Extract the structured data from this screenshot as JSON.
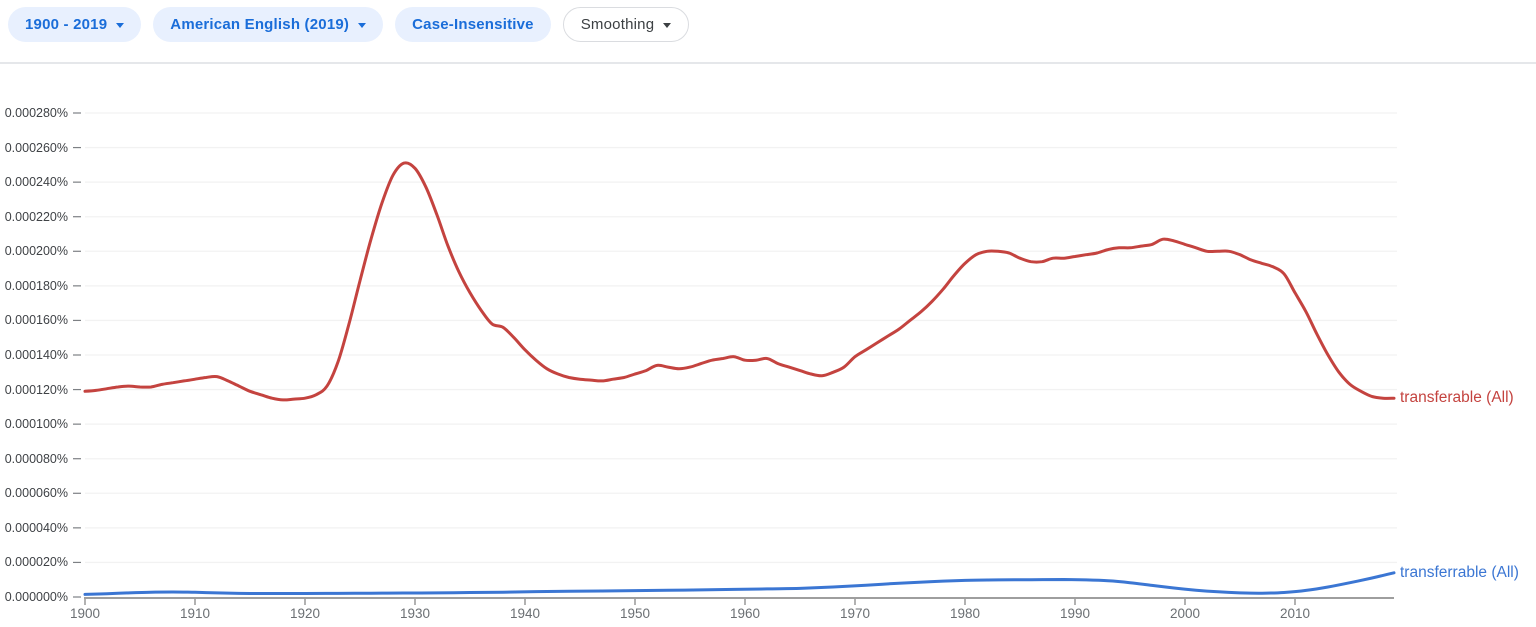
{
  "toolbar": {
    "year_range_chip": {
      "label": "1900 - 2019"
    },
    "corpus_chip": {
      "label": "American English (2019)"
    },
    "case_chip": {
      "label": "Case-Insensitive"
    },
    "smoothing_chip": {
      "label": "Smoothing"
    }
  },
  "colors": {
    "chip_bg": "#e8f0fe",
    "chip_text": "#1a6dd9",
    "red_series": "#c4433f",
    "blue_series": "#3b76d3",
    "gridline": "#f2f2f2",
    "axis": "#9e9e9e"
  },
  "chart_data": {
    "type": "line",
    "title": "",
    "xlabel": "",
    "ylabel": "",
    "xlim": [
      1900,
      2019
    ],
    "ylim": [
      0,
      2.8e-06
    ],
    "ylim_percent": [
      0,
      0.00028
    ],
    "y_tick_step_percent": 2e-05,
    "grid": "horizontal",
    "legend_position": "right-of-line-end",
    "y_tick_labels": [
      "0.000000%",
      "0.000020%",
      "0.000040%",
      "0.000060%",
      "0.000080%",
      "0.000100%",
      "0.000120%",
      "0.000140%",
      "0.000160%",
      "0.000180%",
      "0.000200%",
      "0.000220%",
      "0.000240%",
      "0.000260%",
      "0.000280%"
    ],
    "x_tick_labels": [
      "1900",
      "1910",
      "1920",
      "1930",
      "1940",
      "1950",
      "1960",
      "1970",
      "1980",
      "1990",
      "2000",
      "2010"
    ],
    "x_tick_years": [
      1900,
      1910,
      1920,
      1930,
      1940,
      1950,
      1960,
      1970,
      1980,
      1990,
      2000,
      2010
    ],
    "series": [
      {
        "name": "transferable (All)",
        "color": "#c4433f",
        "points": [
          [
            1900,
            0.000119
          ],
          [
            1901,
            0.0001195
          ],
          [
            1902,
            0.0001205
          ],
          [
            1903,
            0.0001215
          ],
          [
            1904,
            0.000122
          ],
          [
            1905,
            0.0001215
          ],
          [
            1906,
            0.0001215
          ],
          [
            1907,
            0.000123
          ],
          [
            1908,
            0.000124
          ],
          [
            1909,
            0.000125
          ],
          [
            1910,
            0.000126
          ],
          [
            1911,
            0.000127
          ],
          [
            1912,
            0.0001275
          ],
          [
            1913,
            0.000125
          ],
          [
            1914,
            0.000122
          ],
          [
            1915,
            0.000119
          ],
          [
            1916,
            0.000117
          ],
          [
            1917,
            0.000115
          ],
          [
            1918,
            0.000114
          ],
          [
            1919,
            0.0001145
          ],
          [
            1920,
            0.000115
          ],
          [
            1921,
            0.000117
          ],
          [
            1922,
            0.000122
          ],
          [
            1923,
            0.000136
          ],
          [
            1924,
            0.000158
          ],
          [
            1925,
            0.000183
          ],
          [
            1926,
            0.000207
          ],
          [
            1927,
            0.000228
          ],
          [
            1928,
            0.000244
          ],
          [
            1929,
            0.000251
          ],
          [
            1930,
            0.000248
          ],
          [
            1931,
            0.000237
          ],
          [
            1932,
            0.000221
          ],
          [
            1933,
            0.000203
          ],
          [
            1934,
            0.000188
          ],
          [
            1935,
            0.000176
          ],
          [
            1936,
            0.000166
          ],
          [
            1937,
            0.000158
          ],
          [
            1938,
            0.000156
          ],
          [
            1939,
            0.00015
          ],
          [
            1940,
            0.000143
          ],
          [
            1941,
            0.000137
          ],
          [
            1942,
            0.000132
          ],
          [
            1943,
            0.000129
          ],
          [
            1944,
            0.000127
          ],
          [
            1945,
            0.000126
          ],
          [
            1946,
            0.0001255
          ],
          [
            1947,
            0.000125
          ],
          [
            1948,
            0.000126
          ],
          [
            1949,
            0.000127
          ],
          [
            1950,
            0.000129
          ],
          [
            1951,
            0.000131
          ],
          [
            1952,
            0.000134
          ],
          [
            1953,
            0.000133
          ],
          [
            1954,
            0.000132
          ],
          [
            1955,
            0.000133
          ],
          [
            1956,
            0.000135
          ],
          [
            1957,
            0.000137
          ],
          [
            1958,
            0.000138
          ],
          [
            1959,
            0.000139
          ],
          [
            1960,
            0.000137
          ],
          [
            1961,
            0.000137
          ],
          [
            1962,
            0.000138
          ],
          [
            1963,
            0.000135
          ],
          [
            1964,
            0.000133
          ],
          [
            1965,
            0.000131
          ],
          [
            1966,
            0.000129
          ],
          [
            1967,
            0.000128
          ],
          [
            1968,
            0.00013
          ],
          [
            1969,
            0.000133
          ],
          [
            1970,
            0.000139
          ],
          [
            1971,
            0.000143
          ],
          [
            1972,
            0.000147
          ],
          [
            1973,
            0.000151
          ],
          [
            1974,
            0.000155
          ],
          [
            1975,
            0.00016
          ],
          [
            1976,
            0.000165
          ],
          [
            1977,
            0.000171
          ],
          [
            1978,
            0.000178
          ],
          [
            1979,
            0.000186
          ],
          [
            1980,
            0.000193
          ],
          [
            1981,
            0.000198
          ],
          [
            1982,
            0.0002
          ],
          [
            1983,
            0.0002
          ],
          [
            1984,
            0.000199
          ],
          [
            1985,
            0.000196
          ],
          [
            1986,
            0.000194
          ],
          [
            1987,
            0.000194
          ],
          [
            1988,
            0.000196
          ],
          [
            1989,
            0.000196
          ],
          [
            1990,
            0.000197
          ],
          [
            1991,
            0.000198
          ],
          [
            1992,
            0.000199
          ],
          [
            1993,
            0.000201
          ],
          [
            1994,
            0.000202
          ],
          [
            1995,
            0.000202
          ],
          [
            1996,
            0.000203
          ],
          [
            1997,
            0.000204
          ],
          [
            1998,
            0.000207
          ],
          [
            1999,
            0.000206
          ],
          [
            2000,
            0.000204
          ],
          [
            2001,
            0.000202
          ],
          [
            2002,
            0.0002
          ],
          [
            2003,
            0.0002
          ],
          [
            2004,
            0.0002
          ],
          [
            2005,
            0.000198
          ],
          [
            2006,
            0.000195
          ],
          [
            2007,
            0.000193
          ],
          [
            2008,
            0.000191
          ],
          [
            2009,
            0.000187
          ],
          [
            2010,
            0.000176
          ],
          [
            2011,
            0.000165
          ],
          [
            2012,
            0.000152
          ],
          [
            2013,
            0.00014
          ],
          [
            2014,
            0.00013
          ],
          [
            2015,
            0.000123
          ],
          [
            2016,
            0.000119
          ],
          [
            2017,
            0.000116
          ],
          [
            2018,
            0.000115
          ],
          [
            2019,
            0.000115
          ]
        ]
      },
      {
        "name": "transferrable (All)",
        "color": "#3b76d3",
        "points": [
          [
            1900,
            1.5e-06
          ],
          [
            1902,
            1.9e-06
          ],
          [
            1904,
            2.4e-06
          ],
          [
            1906,
            2.8e-06
          ],
          [
            1908,
            2.9e-06
          ],
          [
            1910,
            2.7e-06
          ],
          [
            1912,
            2.4e-06
          ],
          [
            1914,
            2.1e-06
          ],
          [
            1916,
            2e-06
          ],
          [
            1918,
            2e-06
          ],
          [
            1920,
            2e-06
          ],
          [
            1923,
            2.1e-06
          ],
          [
            1926,
            2.2e-06
          ],
          [
            1929,
            2.3e-06
          ],
          [
            1932,
            2.4e-06
          ],
          [
            1935,
            2.6e-06
          ],
          [
            1938,
            2.8e-06
          ],
          [
            1941,
            3.1e-06
          ],
          [
            1944,
            3.3e-06
          ],
          [
            1947,
            3.5e-06
          ],
          [
            1950,
            3.7e-06
          ],
          [
            1953,
            3.9e-06
          ],
          [
            1956,
            4.1e-06
          ],
          [
            1959,
            4.4e-06
          ],
          [
            1962,
            4.7e-06
          ],
          [
            1965,
            5e-06
          ],
          [
            1968,
            5.8e-06
          ],
          [
            1971,
            6.8e-06
          ],
          [
            1974,
            8e-06
          ],
          [
            1977,
            8.9e-06
          ],
          [
            1980,
            9.6e-06
          ],
          [
            1983,
            9.9e-06
          ],
          [
            1986,
            1e-05
          ],
          [
            1989,
            1.01e-05
          ],
          [
            1991,
            9.9e-06
          ],
          [
            1993,
            9.4e-06
          ],
          [
            1995,
            8.3e-06
          ],
          [
            1997,
            6.7e-06
          ],
          [
            1999,
            5.2e-06
          ],
          [
            2001,
            3.9e-06
          ],
          [
            2003,
            3e-06
          ],
          [
            2005,
            2.4e-06
          ],
          [
            2007,
            2.2e-06
          ],
          [
            2009,
            2.6e-06
          ],
          [
            2011,
            3.8e-06
          ],
          [
            2013,
            5.8e-06
          ],
          [
            2015,
            8.3e-06
          ],
          [
            2017,
            1.1e-05
          ],
          [
            2018,
            1.25e-05
          ],
          [
            2019,
            1.4e-05
          ]
        ]
      }
    ]
  }
}
